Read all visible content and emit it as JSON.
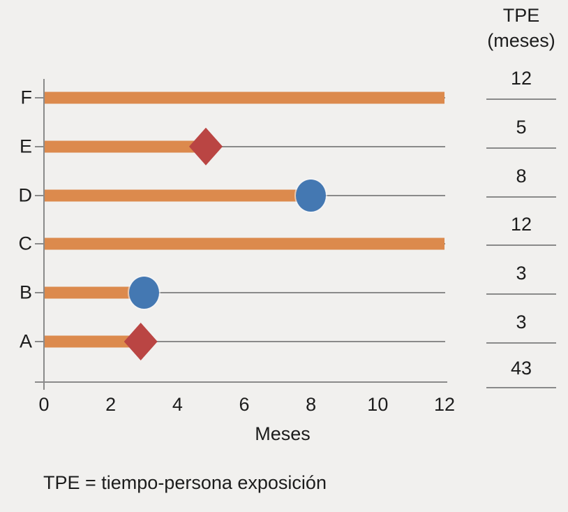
{
  "colors": {
    "background": "#F1F0EE",
    "bar": "#DC8A4D",
    "circle": "#4478B2",
    "diamond": "#BA4543",
    "axis": "#8A8A8A",
    "text": "#1C1C1C"
  },
  "tpe_column": {
    "header_line1": "TPE",
    "header_line2": "(meses)",
    "total": "43"
  },
  "footnote": "TPE = tiempo-persona exposición",
  "chart_data": {
    "type": "bar",
    "orientation": "horizontal",
    "title": "",
    "xlabel": "Meses",
    "ylabel": "",
    "xlim": [
      0,
      12
    ],
    "xticks": [
      0,
      2,
      4,
      6,
      8,
      10,
      12
    ],
    "grid": "thin gray line across each category row",
    "legend": "none",
    "categories_top_to_bottom": [
      "F",
      "E",
      "D",
      "C",
      "B",
      "A"
    ],
    "rows": [
      {
        "label": "F",
        "bar_months": 12,
        "marker": null,
        "tpe": "12"
      },
      {
        "label": "E",
        "bar_months": 4.8,
        "marker": {
          "shape": "diamond",
          "x": 4.85
        },
        "tpe": "5"
      },
      {
        "label": "D",
        "bar_months": 8,
        "marker": {
          "shape": "circle",
          "x": 8
        },
        "tpe": "8"
      },
      {
        "label": "C",
        "bar_months": 12,
        "marker": null,
        "tpe": "12"
      },
      {
        "label": "B",
        "bar_months": 3,
        "marker": {
          "shape": "circle",
          "x": 3
        },
        "tpe": "3"
      },
      {
        "label": "A",
        "bar_months": 2.8,
        "marker": {
          "shape": "diamond",
          "x": 2.9
        },
        "tpe": "3"
      }
    ],
    "right_column": {
      "header": "TPE (meses)",
      "values": [
        12,
        5,
        8,
        12,
        3,
        3
      ],
      "total": 43
    },
    "footnote": "TPE = tiempo-persona exposición"
  }
}
